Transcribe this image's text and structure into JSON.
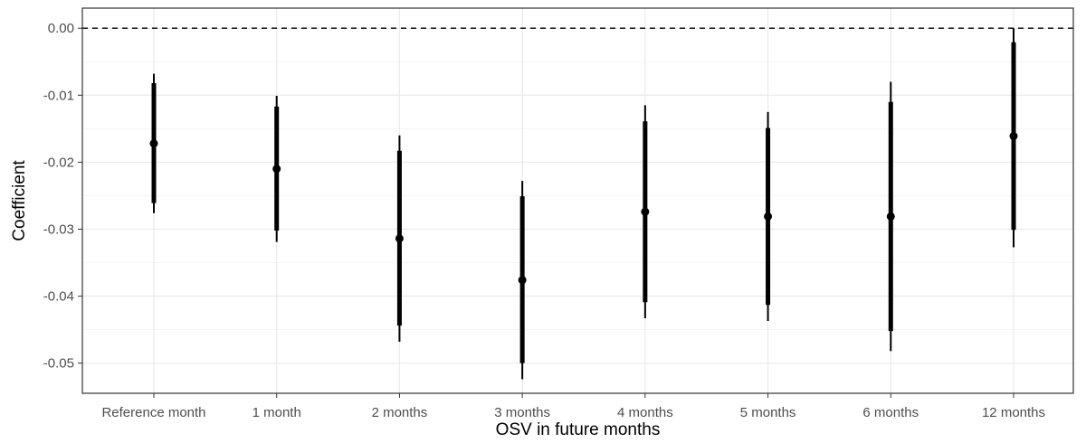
{
  "chart_data": {
    "type": "errorbar",
    "title": "",
    "xlabel": "OSV in future months",
    "ylabel": "Coefficient",
    "ylim": [
      -0.0545,
      0.003
    ],
    "y_ticks": [
      0.0,
      -0.01,
      -0.02,
      -0.03,
      -0.04,
      -0.05
    ],
    "y_tick_labels": [
      "0.00",
      "-0.01",
      "-0.02",
      "-0.03",
      "-0.04",
      "-0.05"
    ],
    "grid": true,
    "reference_line": {
      "y": 0.0,
      "style": "dashed"
    },
    "categories": [
      "Reference month",
      "1 month",
      "2 months",
      "3 months",
      "4 months",
      "5 months",
      "6 months",
      "12 months"
    ],
    "estimates": [
      -0.0172,
      -0.021,
      -0.0314,
      -0.0376,
      -0.0274,
      -0.0281,
      -0.0281,
      -0.0161
    ],
    "inner_ci_low": [
      -0.0261,
      -0.0302,
      -0.0444,
      -0.05,
      -0.0409,
      -0.0413,
      -0.0452,
      -0.0301
    ],
    "inner_ci_high": [
      -0.0082,
      -0.0117,
      -0.0183,
      -0.0251,
      -0.0139,
      -0.0149,
      -0.011,
      -0.0021
    ],
    "outer_ci_low": [
      -0.0276,
      -0.0319,
      -0.0468,
      -0.0524,
      -0.0433,
      -0.0437,
      -0.0482,
      -0.0327
    ],
    "outer_ci_high": [
      -0.0068,
      -0.0101,
      -0.016,
      -0.0228,
      -0.0115,
      -0.0125,
      -0.008,
      0.0
    ],
    "colors": {
      "marks": "#000000",
      "grid": "#ebebeb",
      "panel_border": "#333333"
    }
  }
}
